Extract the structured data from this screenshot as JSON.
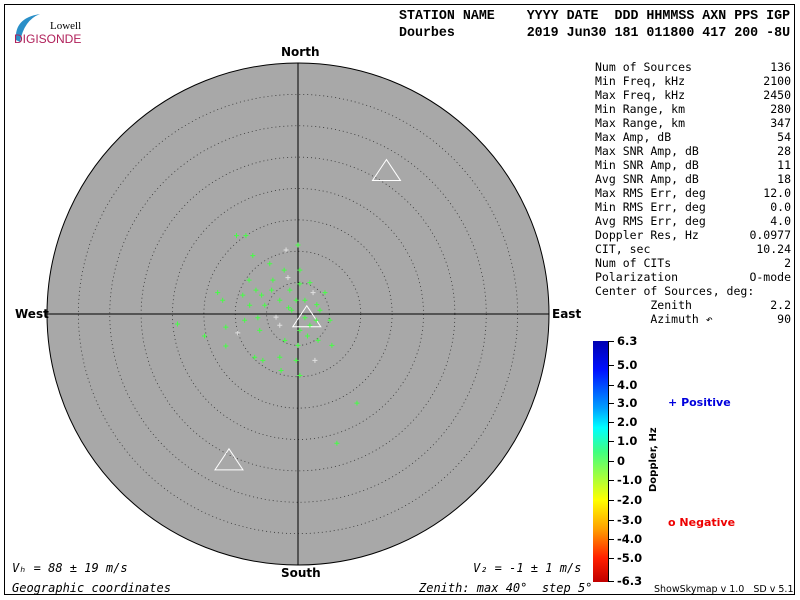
{
  "logo": {
    "line1": "Lowell",
    "line2": "DIGISONDE"
  },
  "header": {
    "labels": "STATION NAME    YYYY DATE  DDD HHMMSS AXN PPS IGP",
    "values": "Dourbes         2019 Jun30 181 011800 417 200 -8U"
  },
  "stats": [
    {
      "label": "Num of Sources",
      "value": "136"
    },
    {
      "label": "Min Freq, kHz",
      "value": "2100"
    },
    {
      "label": "Max Freq, kHz",
      "value": "2450"
    },
    {
      "label": "Min Range, km",
      "value": "280"
    },
    {
      "label": "Max Range, km",
      "value": "347"
    },
    {
      "label": "Max Amp, dB",
      "value": "54"
    },
    {
      "label": "Max SNR Amp, dB",
      "value": "28"
    },
    {
      "label": "Min SNR Amp, dB",
      "value": "11"
    },
    {
      "label": "Avg SNR Amp, dB",
      "value": "18"
    },
    {
      "label": "Max RMS Err, deg",
      "value": "12.0"
    },
    {
      "label": "Min RMS Err, deg",
      "value": "0.0"
    },
    {
      "label": "Avg RMS Err, deg",
      "value": "4.0"
    },
    {
      "label": "Doppler Res, Hz",
      "value": "0.0977"
    },
    {
      "label": "CIT, sec",
      "value": "10.24"
    },
    {
      "label": "Num of CITs",
      "value": "2"
    },
    {
      "label": "Polarization",
      "value": "O-mode"
    },
    {
      "label": "Center of Sources, deg:",
      "value": ""
    },
    {
      "label": "        Zenith",
      "value": "2.2"
    },
    {
      "label": "        Azimuth ↶",
      "value": "90"
    }
  ],
  "directions": {
    "north": "North",
    "south": "South",
    "east": "East",
    "west": "West"
  },
  "footer": {
    "vh": "Vₕ = 88 ± 19 m/s",
    "vz": "V₂ = -1 ± 1 m/s",
    "coords": "Geographic coordinates",
    "zenith": "Zenith: max 40°  step 5°",
    "version": "ShowSkymap v 1.0   SD v 5.1"
  },
  "legend": {
    "positive": "Positive",
    "negative": "Negative",
    "positive_color": "#0000dd",
    "negative_color": "#ee0000",
    "colorbar_label": "Doppler, Hz",
    "ticks": [
      "6.3",
      "5.0",
      "4.0",
      "3.0",
      "2.0",
      "1.0",
      "0",
      "-1.0",
      "-2.0",
      "-3.0",
      "-4.0",
      "-5.0",
      "-6.3"
    ]
  },
  "chart_data": {
    "type": "scatter",
    "projection": "polar skymap, zenith angle 0-40 deg, rings every 5 deg",
    "zenith_max": 40,
    "zenith_step": 5,
    "background": "#a8a8a8",
    "point_color": "#44ff44",
    "points_east_north_deg": [
      [
        -9.8,
        12.5
      ],
      [
        -8.3,
        12.5
      ],
      [
        -7.2,
        9.3
      ],
      [
        0,
        11
      ],
      [
        -1.9,
        10.2
      ],
      [
        -4.5,
        8
      ],
      [
        -7.8,
        5.4
      ],
      [
        -4,
        5.4
      ],
      [
        -8.8,
        3
      ],
      [
        -12,
        2.2
      ],
      [
        -19.2,
        -1.6
      ],
      [
        -11.5,
        -2.1
      ],
      [
        -11.5,
        -5.1
      ],
      [
        -9.6,
        -3
      ],
      [
        -6.1,
        -2.6
      ],
      [
        -6.9,
        -6.9
      ],
      [
        -2.9,
        -6.9
      ],
      [
        0,
        -5
      ],
      [
        3.2,
        -4.2
      ],
      [
        5.4,
        -5
      ],
      [
        5.1,
        -1
      ],
      [
        3.5,
        0.6
      ],
      [
        2.4,
        3.4
      ],
      [
        4.3,
        3.4
      ],
      [
        0.3,
        7
      ],
      [
        -1.3,
        3.8
      ],
      [
        -2.9,
        2.2
      ],
      [
        -5.3,
        1.4
      ],
      [
        -6.4,
        -0.6
      ],
      [
        0.3,
        -2.6
      ],
      [
        1.9,
        -1.8
      ],
      [
        -2.9,
        -1.8
      ],
      [
        -4.2,
        3.8
      ],
      [
        -5.8,
        3
      ],
      [
        -7.7,
        1.4
      ],
      [
        -0.3,
        -7.4
      ],
      [
        -2.7,
        -9
      ],
      [
        0.3,
        -9.8
      ],
      [
        9.4,
        -14.2
      ],
      [
        6.2,
        -20.6
      ],
      [
        -1.6,
        5.8
      ],
      [
        1.1,
        2.2
      ],
      [
        -1,
        0.6
      ],
      [
        1.1,
        -0.6
      ],
      [
        2.9,
        -1
      ],
      [
        -2.1,
        -4.2
      ],
      [
        -8.5,
        -1
      ],
      [
        -14.9,
        -3.5
      ],
      [
        -12.8,
        3.4
      ],
      [
        2.7,
        -7.4
      ],
      [
        -5.6,
        -7.4
      ],
      [
        -0.3,
        2.2
      ],
      [
        1.9,
        5
      ],
      [
        -2.2,
        7
      ],
      [
        -6.7,
        3.8
      ],
      [
        0.3,
        4.8
      ],
      [
        -1.5,
        1
      ],
      [
        3,
        1.5
      ],
      [
        -3.5,
        -0.5
      ],
      [
        1.5,
        -3.5
      ]
    ],
    "triangle_markers_east_north_deg": [
      [
        14.1,
        22.7
      ],
      [
        -11,
        -23.4
      ],
      [
        1.4,
        -0.6
      ]
    ]
  }
}
